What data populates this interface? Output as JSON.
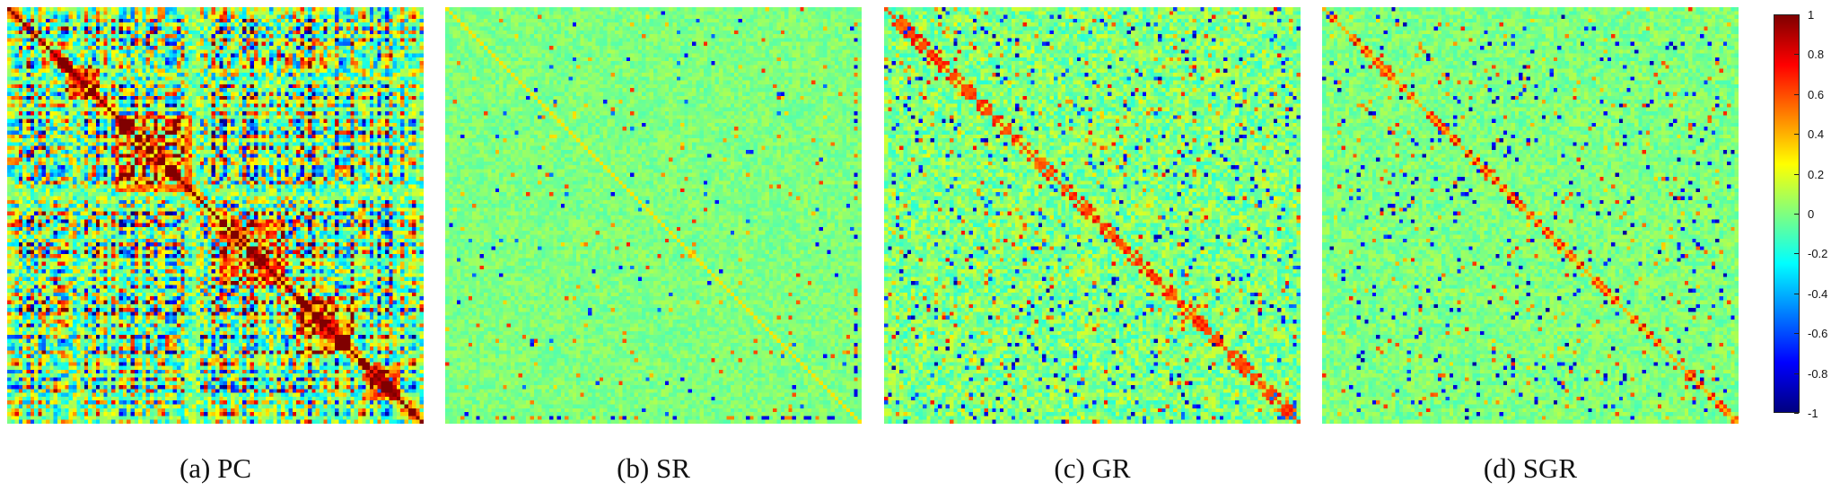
{
  "chart_data": [
    {
      "type": "heatmap",
      "caption": "(a) PC",
      "grid": 108,
      "value_range": [
        -1,
        1
      ]
    },
    {
      "type": "heatmap",
      "caption": "(b) SR",
      "grid": 108,
      "value_range": [
        -1,
        1
      ]
    },
    {
      "type": "heatmap",
      "caption": "(c) GR",
      "grid": 108,
      "value_range": [
        -1,
        1
      ]
    },
    {
      "type": "heatmap",
      "caption": "(d) SGR",
      "grid": 108,
      "value_range": [
        -1,
        1
      ]
    }
  ],
  "colorbar": {
    "min": -1,
    "max": 1,
    "colormap": "jet",
    "ticks": [
      "1",
      "0.8",
      "0.6",
      "0.4",
      "0.2",
      "0",
      "-0.2",
      "-0.4",
      "-0.6",
      "-0.8",
      "-1"
    ]
  }
}
